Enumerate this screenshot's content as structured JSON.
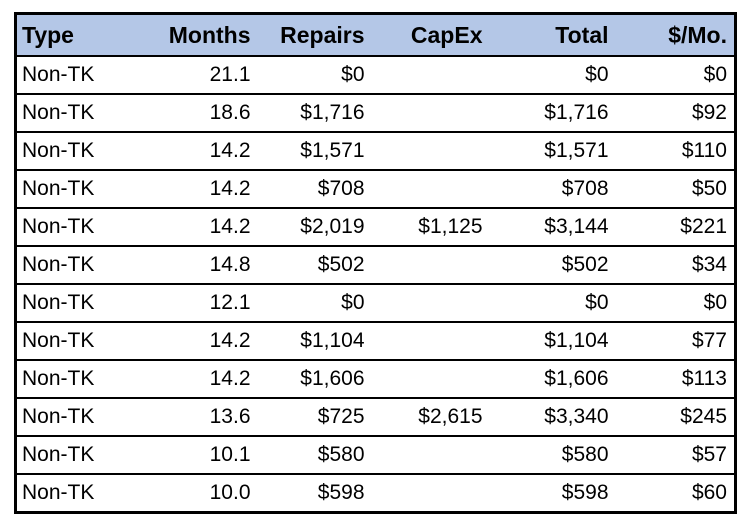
{
  "table": {
    "headers": [
      "Type",
      "Months",
      "Repairs",
      "CapEx",
      "Total",
      "$/Mo."
    ],
    "rows": [
      [
        "Non-TK",
        "21.1",
        "$0",
        "",
        "$0",
        "$0"
      ],
      [
        "Non-TK",
        "18.6",
        "$1,716",
        "",
        "$1,716",
        "$92"
      ],
      [
        "Non-TK",
        "14.2",
        "$1,571",
        "",
        "$1,571",
        "$110"
      ],
      [
        "Non-TK",
        "14.2",
        "$708",
        "",
        "$708",
        "$50"
      ],
      [
        "Non-TK",
        "14.2",
        "$2,019",
        "$1,125",
        "$3,144",
        "$221"
      ],
      [
        "Non-TK",
        "14.8",
        "$502",
        "",
        "$502",
        "$34"
      ],
      [
        "Non-TK",
        "12.1",
        "$0",
        "",
        "$0",
        "$0"
      ],
      [
        "Non-TK",
        "14.2",
        "$1,104",
        "",
        "$1,104",
        "$77"
      ],
      [
        "Non-TK",
        "14.2",
        "$1,606",
        "",
        "$1,606",
        "$113"
      ],
      [
        "Non-TK",
        "13.6",
        "$725",
        "$2,615",
        "$3,340",
        "$245"
      ],
      [
        "Non-TK",
        "10.1",
        "$580",
        "",
        "$580",
        "$57"
      ],
      [
        "Non-TK",
        "10.0",
        "$598",
        "",
        "$598",
        "$60"
      ]
    ],
    "colors": {
      "header_bg": "#b4c7e7",
      "border_color": "#000000"
    }
  },
  "chart_data": {
    "type": "table",
    "title": "",
    "columns": [
      "Type",
      "Months",
      "Repairs",
      "CapEx",
      "Total",
      "$/Mo."
    ],
    "records": [
      {
        "type": "Non-TK",
        "months": 21.1,
        "repairs": 0,
        "capex": null,
        "total": 0,
        "per_mo": 0
      },
      {
        "type": "Non-TK",
        "months": 18.6,
        "repairs": 1716,
        "capex": null,
        "total": 1716,
        "per_mo": 92
      },
      {
        "type": "Non-TK",
        "months": 14.2,
        "repairs": 1571,
        "capex": null,
        "total": 1571,
        "per_mo": 110
      },
      {
        "type": "Non-TK",
        "months": 14.2,
        "repairs": 708,
        "capex": null,
        "total": 708,
        "per_mo": 50
      },
      {
        "type": "Non-TK",
        "months": 14.2,
        "repairs": 2019,
        "capex": 1125,
        "total": 3144,
        "per_mo": 221
      },
      {
        "type": "Non-TK",
        "months": 14.8,
        "repairs": 502,
        "capex": null,
        "total": 502,
        "per_mo": 34
      },
      {
        "type": "Non-TK",
        "months": 12.1,
        "repairs": 0,
        "capex": null,
        "total": 0,
        "per_mo": 0
      },
      {
        "type": "Non-TK",
        "months": 14.2,
        "repairs": 1104,
        "capex": null,
        "total": 1104,
        "per_mo": 77
      },
      {
        "type": "Non-TK",
        "months": 14.2,
        "repairs": 1606,
        "capex": null,
        "total": 1606,
        "per_mo": 113
      },
      {
        "type": "Non-TK",
        "months": 13.6,
        "repairs": 725,
        "capex": 2615,
        "total": 3340,
        "per_mo": 245
      },
      {
        "type": "Non-TK",
        "months": 10.1,
        "repairs": 580,
        "capex": null,
        "total": 580,
        "per_mo": 57
      },
      {
        "type": "Non-TK",
        "months": 10.0,
        "repairs": 598,
        "capex": null,
        "total": 598,
        "per_mo": 60
      }
    ],
    "layout_hints": {
      "header_background": "#b4c7e7",
      "grid": "horizontal-only",
      "numeric_alignment": "right",
      "first_column_alignment": "left"
    }
  }
}
